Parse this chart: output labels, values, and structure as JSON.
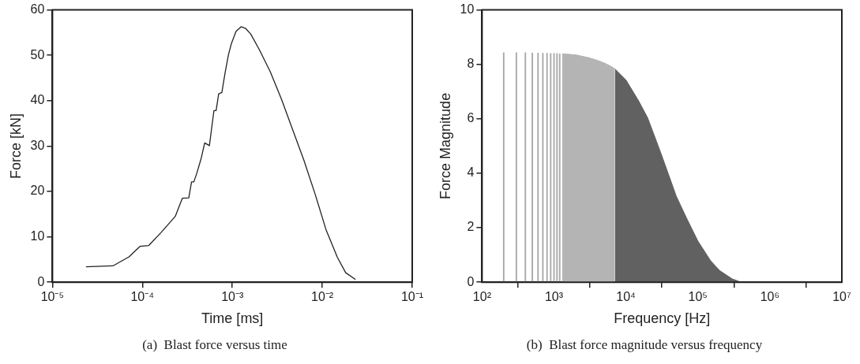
{
  "chart_data": [
    {
      "type": "line",
      "xlabel": "Time [ms]",
      "ylabel": "Force [kN]",
      "log": "x",
      "grid": false,
      "legend": false,
      "marker": "none",
      "line_style": "solid",
      "xlim": [
        1e-05,
        0.1
      ],
      "xticks": [
        {
          "value": 1e-05,
          "label": "10⁻⁵"
        },
        {
          "value": 0.0001,
          "label": "10⁻⁴"
        },
        {
          "value": 0.001,
          "label": "10⁻³"
        },
        {
          "value": 0.01,
          "label": "10⁻²"
        },
        {
          "value": 0.1,
          "label": "10⁻¹"
        }
      ],
      "ylim": [
        0,
        60
      ],
      "yticks": [
        0,
        10,
        20,
        30,
        40,
        50,
        60
      ],
      "annotations": [
        "(a)  Blast force versus time"
      ],
      "series": [
        {
          "color": "#222222",
          "x": [
            2.36e-05,
            4.7e-05,
            7.1e-05,
            9.4e-05,
            0.000118,
            0.000162,
            0.000232,
            0.000278,
            0.000328,
            0.000352,
            0.000373,
            0.000404,
            0.000449,
            0.000493,
            0.000556,
            0.000624,
            0.00066,
            0.000705,
            0.000765,
            0.00083,
            0.000905,
            0.000973,
            0.0011,
            0.00125,
            0.00141,
            0.0016,
            0.00199,
            0.00264,
            0.00352,
            0.00469,
            0.00624,
            0.0083,
            0.011,
            0.0147,
            0.0182,
            0.0234
          ],
          "values": [
            3.4,
            3.6,
            5.6,
            7.9,
            8.1,
            11.0,
            14.5,
            18.5,
            18.6,
            22.1,
            22.1,
            24.1,
            27.2,
            30.7,
            30.1,
            37.8,
            37.8,
            41.5,
            41.8,
            46.1,
            50.1,
            52.5,
            55.3,
            56.3,
            55.9,
            54.7,
            51.3,
            46.4,
            40.3,
            33.6,
            26.9,
            19.5,
            11.6,
            5.5,
            2.1,
            0.6
          ]
        }
      ]
    },
    {
      "type": "bar",
      "xlabel": "Frequency [Hz]",
      "ylabel": "Force Magnitude",
      "log": "x",
      "grid": false,
      "legend": false,
      "xlim": [
        100,
        10000000
      ],
      "xticks": [
        {
          "value": 100,
          "label": "10²"
        },
        {
          "value": 1000,
          "label": "10³"
        },
        {
          "value": 10000,
          "label": "10⁴"
        },
        {
          "value": 100000,
          "label": "10⁵"
        },
        {
          "value": 1000000,
          "label": "10⁶"
        },
        {
          "value": 10000000,
          "label": "10⁷"
        }
      ],
      "ylim": [
        0,
        10
      ],
      "yticks": [
        0,
        2,
        4,
        6,
        8,
        10
      ],
      "annotations": [
        "(b)  Blast force magnitude versus frequency"
      ],
      "series": [
        {
          "type": "bar",
          "color": "#a8a8a8",
          "x": [
            200,
            300,
            400,
            500,
            600,
            700,
            800,
            900,
            1000,
            1100,
            1200
          ],
          "values": [
            8.43,
            8.43,
            8.43,
            8.42,
            8.42,
            8.41,
            8.41,
            8.4,
            8.4,
            8.4,
            8.39
          ]
        },
        {
          "type": "area",
          "color": "#b4b4b4",
          "x": [
            1300,
            2000,
            3000,
            4000,
            5000,
            6000,
            7000
          ],
          "values": [
            8.39,
            8.35,
            8.25,
            8.15,
            8.05,
            7.95,
            7.84
          ]
        },
        {
          "type": "area",
          "color": "#616161",
          "x": [
            7000,
            10000,
            15000,
            20000,
            30000,
            40000,
            50000,
            70000,
            100000,
            150000,
            200000,
            300000,
            400000,
            10000000
          ],
          "values": [
            7.84,
            7.43,
            6.66,
            6.04,
            4.8,
            3.88,
            3.16,
            2.34,
            1.51,
            0.79,
            0.43,
            0.12,
            0,
            0
          ]
        }
      ]
    }
  ]
}
